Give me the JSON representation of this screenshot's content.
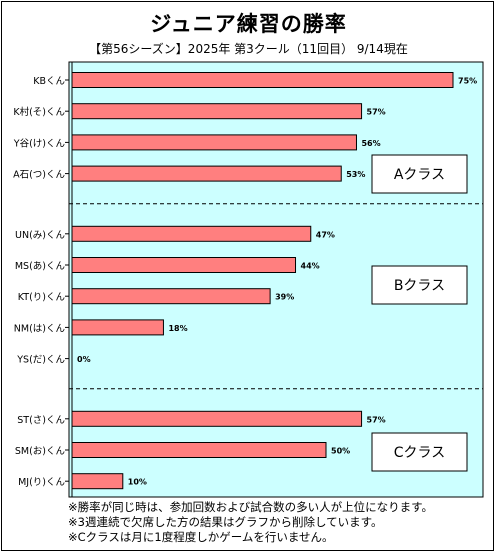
{
  "title": "ジュニア練習の勝率",
  "subtitle": "【第56シーズン】2025年 第3クール（11回目） 9/14現在",
  "footnotes": [
    "※勝率が同じ時は、参加回数および試合数の多い人が上位になります。",
    "※3週連続で欠席した方の結果はグラフから削除しています。",
    "※Cクラスは月に1度程度しかゲームを行いません。"
  ],
  "colors": {
    "plot_bg": "#ccffff",
    "bar": "#ff7f7f",
    "bar_stroke": "#000000"
  },
  "chart_data": {
    "type": "bar",
    "orientation": "horizontal",
    "xlim": [
      0,
      75
    ],
    "value_suffix": "%",
    "grid": false,
    "groups": [
      {
        "label": "Aクラス",
        "categories": [
          "KBくん",
          "K村(そ)くん",
          "Y谷(け)くん",
          "A石(つ)くん"
        ],
        "values": [
          75,
          57,
          56,
          53
        ]
      },
      {
        "label": "Bクラス",
        "categories": [
          "UN(み)くん",
          "MS(あ)くん",
          "KT(り)くん",
          "NM(は)くん",
          "YS(だ)くん"
        ],
        "values": [
          47,
          44,
          39,
          18,
          0
        ]
      },
      {
        "label": "Cクラス",
        "categories": [
          "ST(さ)くん",
          "SM(お)くん",
          "MJ(り)くん"
        ],
        "values": [
          57,
          50,
          10
        ]
      }
    ]
  }
}
